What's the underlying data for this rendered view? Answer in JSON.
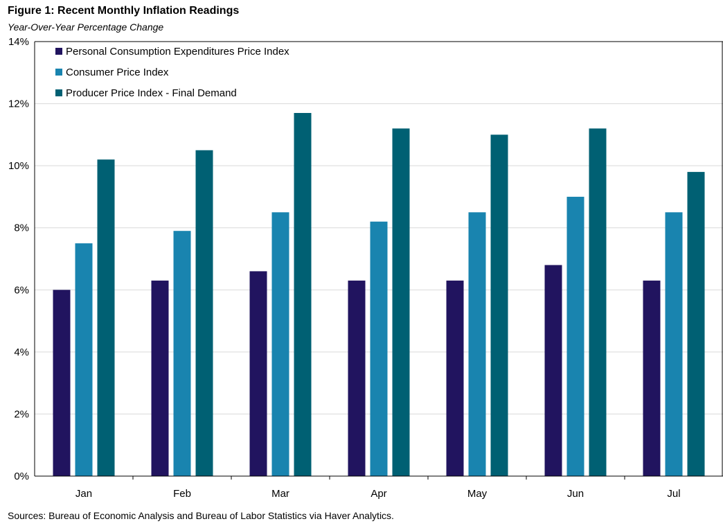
{
  "title": "Figure 1: Recent Monthly Inflation Readings",
  "subtitle": "Year-Over-Year Percentage Change",
  "source": "Sources: Bureau of Economic Analysis and Bureau of Labor Statistics via Haver Analytics.",
  "chart_data": {
    "type": "bar",
    "title": "Figure 1: Recent Monthly Inflation Readings",
    "subtitle": "Year-Over-Year Percentage Change",
    "xlabel": "",
    "ylabel": "",
    "categories": [
      "Jan",
      "Feb",
      "Mar",
      "Apr",
      "May",
      "Jun",
      "Jul"
    ],
    "ylim": [
      0,
      14
    ],
    "yticks": [
      0,
      2,
      4,
      6,
      8,
      10,
      12,
      14
    ],
    "ytick_labels": [
      "0%",
      "2%",
      "4%",
      "6%",
      "8%",
      "10%",
      "12%",
      "14%"
    ],
    "grid": true,
    "legend_position": "top-left",
    "series": [
      {
        "name": "Personal Consumption Expenditures Price Index",
        "color": "#21145F",
        "values": [
          6.0,
          6.3,
          6.6,
          6.3,
          6.3,
          6.8,
          6.3
        ]
      },
      {
        "name": "Consumer Price Index",
        "color": "#1984AF",
        "values": [
          7.5,
          7.9,
          8.5,
          8.2,
          8.5,
          9.0,
          8.5
        ]
      },
      {
        "name": "Producer Price Index - Final Demand",
        "color": "#006073",
        "values": [
          10.2,
          10.5,
          11.7,
          11.2,
          11.0,
          11.2,
          9.8
        ]
      }
    ]
  }
}
